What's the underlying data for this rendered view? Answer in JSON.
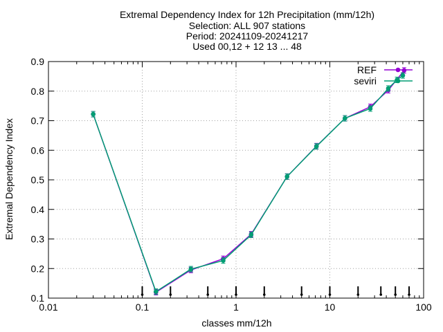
{
  "title_lines": [
    "Extremal Dependency Index  for 12h Precipitation (mm/12h)",
    "Selection: ALL    907 stations",
    "Period: 20241109-20241217",
    "Used 00,12 + 12 13 ... 48"
  ],
  "chart_data": {
    "type": "line",
    "xlabel": "classes mm/12h",
    "ylabel": "Extremal Dependency Index",
    "xscale": "log",
    "xlim": [
      0.01,
      100
    ],
    "ylim": [
      0.1,
      0.9
    ],
    "x_ticks": [
      0.01,
      0.1,
      1,
      10,
      100
    ],
    "x_tick_labels": [
      "0.01",
      "0.1",
      "1",
      "10",
      "100"
    ],
    "y_ticks": [
      0.1,
      0.2,
      0.3,
      0.4,
      0.5,
      0.6,
      0.7,
      0.8,
      0.9
    ],
    "y_tick_labels": [
      "0.1",
      "0.2",
      "0.3",
      "0.4",
      "0.5",
      "0.6",
      "0.7",
      "0.8",
      "0.9"
    ],
    "grid": true,
    "legend_position": "top-right",
    "class_thresholds": [
      0.1,
      0.2,
      0.5,
      1,
      2,
      5,
      10,
      20,
      35,
      50,
      70
    ],
    "series": [
      {
        "name": "REF",
        "color": "#9400d3",
        "marker": "circle",
        "x": [
          0.03,
          0.14,
          0.33,
          0.73,
          1.45,
          3.5,
          7.2,
          14.5,
          27,
          42,
          62
        ],
        "y": [
          0.722,
          0.12,
          0.195,
          0.233,
          0.316,
          0.511,
          0.614,
          0.708,
          0.747,
          0.803,
          0.87
        ]
      },
      {
        "name": "seviri",
        "color": "#009e73",
        "marker": "circle",
        "x": [
          0.03,
          0.14,
          0.33,
          0.73,
          1.45,
          3.5,
          7.2,
          14.5,
          27,
          42,
          52,
          60
        ],
        "y": [
          0.722,
          0.122,
          0.198,
          0.227,
          0.314,
          0.511,
          0.613,
          0.708,
          0.741,
          0.809,
          0.838,
          0.853
        ]
      }
    ]
  }
}
